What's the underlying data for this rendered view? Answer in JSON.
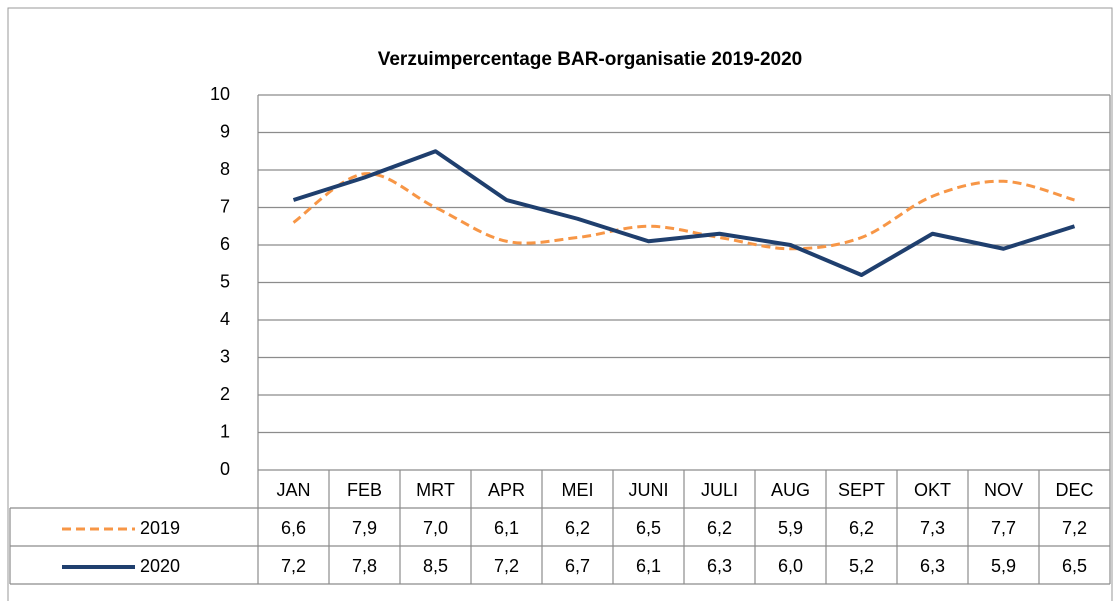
{
  "chart_data": {
    "type": "line",
    "title": "Verzuimpercentage BAR-organisatie 2019-2020",
    "categories": [
      "JAN",
      "FEB",
      "MRT",
      "APR",
      "MEI",
      "JUNI",
      "JULI",
      "AUG",
      "SEPT",
      "OKT",
      "NOV",
      "DEC"
    ],
    "series": [
      {
        "name": "2019",
        "color": "#f79646",
        "dashed": true,
        "smooth": true,
        "values": [
          6.6,
          7.9,
          7.0,
          6.1,
          6.2,
          6.5,
          6.2,
          5.9,
          6.2,
          7.3,
          7.7,
          7.2
        ],
        "value_labels": [
          "6,6",
          "7,9",
          "7,0",
          "6,1",
          "6,2",
          "6,5",
          "6,2",
          "5,9",
          "6,2",
          "7,3",
          "7,7",
          "7,2"
        ]
      },
      {
        "name": "2020",
        "color": "#1f3f6e",
        "dashed": false,
        "smooth": false,
        "values": [
          7.2,
          7.8,
          8.5,
          7.2,
          6.7,
          6.1,
          6.3,
          6.0,
          5.2,
          6.3,
          5.9,
          6.5
        ],
        "value_labels": [
          "7,2",
          "7,8",
          "8,5",
          "7,2",
          "6,7",
          "6,1",
          "6,3",
          "6,0",
          "5,2",
          "6,3",
          "5,9",
          "6,5"
        ]
      }
    ],
    "ylim": [
      0,
      10
    ],
    "yticks": [
      0,
      1,
      2,
      3,
      4,
      5,
      6,
      7,
      8,
      9,
      10
    ],
    "grid": true,
    "data_table": true
  }
}
